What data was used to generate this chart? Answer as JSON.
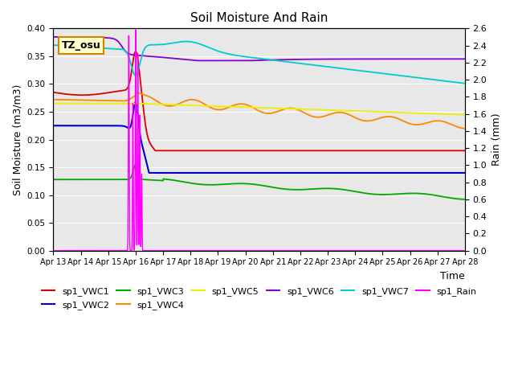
{
  "title": "Soil Moisture And Rain",
  "xlabel": "Time",
  "ylabel_left": "Soil Moisture (m3/m3)",
  "ylabel_right": "Rain (mm)",
  "annotation": "TZ_osu",
  "ylim_left": [
    0.0,
    0.4
  ],
  "ylim_right": [
    0.0,
    2.6
  ],
  "x_tick_labels": [
    "Apr 13",
    "Apr 14",
    "Apr 15",
    "Apr 16",
    "Apr 17",
    "Apr 18",
    "Apr 19",
    "Apr 20",
    "Apr 21",
    "Apr 22",
    "Apr 23",
    "Apr 24",
    "Apr 25",
    "Apr 26",
    "Apr 27",
    "Apr 28"
  ],
  "colors": {
    "VWC1": "#dd0000",
    "VWC2": "#0000cc",
    "VWC3": "#00aa00",
    "VWC4": "#ff8800",
    "VWC5": "#eeee00",
    "VWC6": "#8800cc",
    "VWC7": "#00cccc",
    "Rain": "#ff00ff"
  },
  "background_color": "#e8e8e8",
  "grid_color": "#ffffff"
}
